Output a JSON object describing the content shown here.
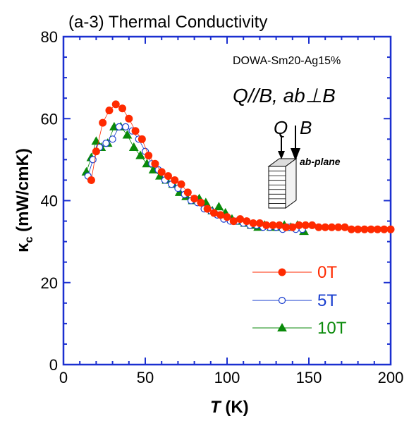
{
  "chart_data": {
    "type": "scatter",
    "title": "(a-3) Thermal Conductivity",
    "annotations": {
      "sample": "DOWA-Sm20-Ag15%",
      "geometry": "Q//B, ab⊥B",
      "inset_q": "Q",
      "inset_b": "B",
      "inset_plane": "ab-plane"
    },
    "xlabel": {
      "var": "T",
      "unit": " (K)"
    },
    "ylabel": {
      "symbol": "κ",
      "sub": "c",
      "unit": " (mW/cmK)"
    },
    "xlim": [
      0,
      200
    ],
    "ylim": [
      0,
      80
    ],
    "xticks": [
      0,
      50,
      100,
      150,
      200
    ],
    "yticks": [
      0,
      20,
      40,
      60,
      80
    ],
    "grid": false,
    "legend_position": "bottom-right",
    "series": [
      {
        "name": "0T",
        "color": "#ff2a00",
        "marker": "filled-circle",
        "x": [
          17,
          20,
          24,
          28,
          32,
          36,
          40,
          44,
          48,
          52,
          56,
          60,
          64,
          68,
          72,
          76,
          80,
          84,
          88,
          92,
          96,
          100,
          104,
          108,
          112,
          116,
          120,
          124,
          128,
          132,
          136,
          140,
          144,
          148,
          152,
          156,
          160,
          164,
          168,
          172,
          176,
          180,
          184,
          188,
          192,
          196,
          200
        ],
        "y": [
          45,
          52,
          59,
          62,
          63.5,
          62.5,
          60,
          57,
          55,
          51,
          49,
          47,
          46,
          45,
          44,
          42,
          40.5,
          39.5,
          38,
          37,
          36.5,
          36,
          35,
          35.5,
          35,
          34.5,
          34.5,
          34,
          34,
          34,
          33.5,
          33.5,
          34,
          34,
          34,
          33.5,
          33.5,
          33.5,
          33.5,
          33.5,
          33,
          33,
          33,
          33,
          33,
          33,
          33
        ]
      },
      {
        "name": "5T",
        "color": "#1a3fcf",
        "marker": "open-circle",
        "x": [
          15,
          18,
          22,
          26,
          30,
          34,
          38,
          42,
          46,
          50,
          54,
          58,
          62,
          66,
          70,
          74,
          78,
          82,
          86,
          90,
          94,
          98,
          102,
          106,
          110,
          114,
          118,
          122,
          126,
          130,
          134,
          138,
          142,
          146
        ],
        "y": [
          46,
          50,
          53,
          54,
          55,
          58,
          58,
          57,
          55,
          52,
          49,
          47.5,
          45,
          44,
          43,
          41.5,
          40,
          39.5,
          38,
          37.5,
          36.5,
          35.5,
          35,
          35,
          34.5,
          34,
          34,
          33.5,
          33.5,
          33.5,
          33,
          33.5,
          33,
          33
        ]
      },
      {
        "name": "10T",
        "color": "#0a8a0a",
        "marker": "filled-triangle",
        "x": [
          14,
          17,
          20,
          23,
          27,
          31,
          35,
          39,
          43,
          47,
          51,
          55,
          59,
          63,
          67,
          71,
          75,
          79,
          83,
          87,
          91,
          95,
          99,
          103,
          107,
          111,
          115,
          119,
          123,
          127,
          131,
          135,
          139,
          143,
          147
        ],
        "y": [
          47,
          50.5,
          54.5,
          53,
          54,
          58,
          58,
          56,
          53,
          51,
          49,
          47.5,
          46,
          45,
          44,
          42,
          41,
          40,
          40.5,
          39.5,
          37.5,
          38.5,
          37,
          35.5,
          35,
          34.5,
          34,
          33.5,
          34,
          33.5,
          33.5,
          34,
          33.5,
          34,
          32.5
        ]
      }
    ]
  }
}
